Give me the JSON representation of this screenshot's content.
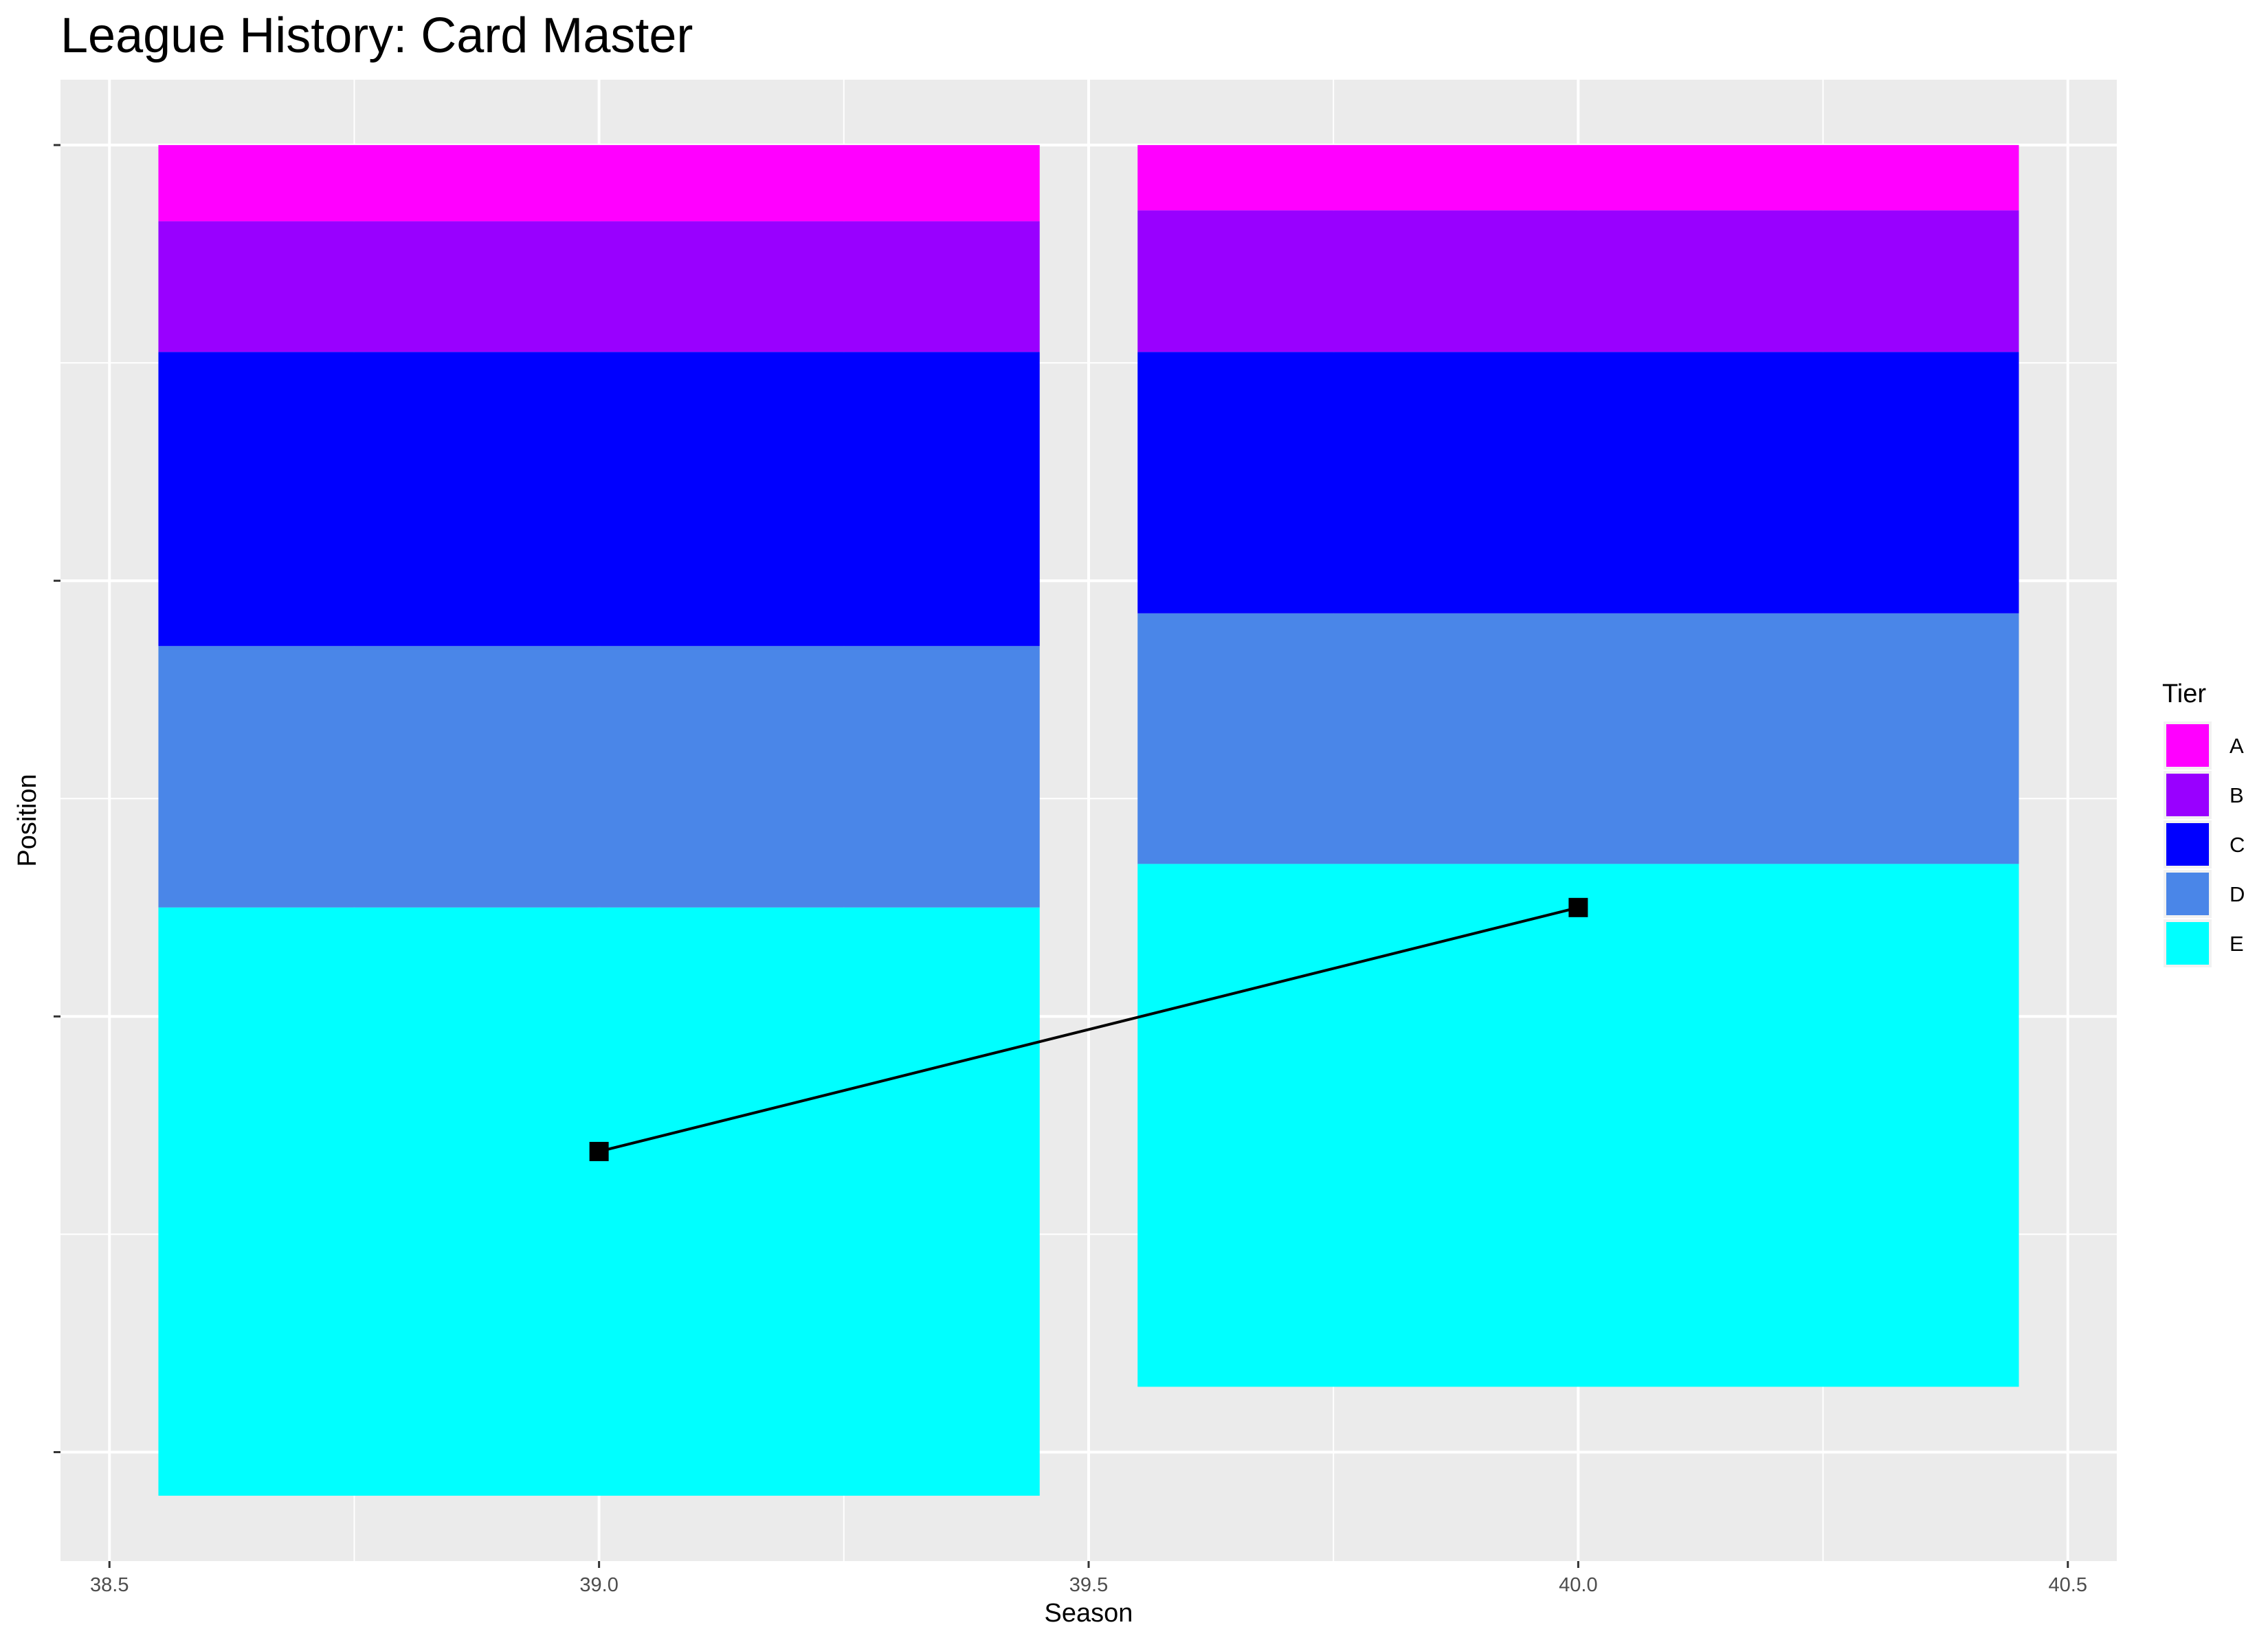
{
  "chart_data": {
    "type": "bar",
    "title": "League History: Card Master",
    "xlabel": "Season",
    "ylabel": "Position",
    "xlim": [
      38.45,
      40.55
    ],
    "ylim": [
      -54.5,
      -20.5
    ],
    "x_ticks": [
      38.5,
      39.0,
      39.5,
      40.0,
      40.5
    ],
    "x_tick_labels": [
      "38.5",
      "39.0",
      "39.5",
      "40.0",
      "40.5"
    ],
    "y_major_ticks": [
      -52,
      -42,
      -32,
      -22
    ],
    "y_minor_ticks": [
      -47,
      -37,
      -27
    ],
    "grid": true,
    "legend": {
      "title": "Tier",
      "placement": "right",
      "entries": [
        {
          "label": "A",
          "color": "#FF00FF"
        },
        {
          "label": "B",
          "color": "#9900FF"
        },
        {
          "label": "C",
          "color": "#0000FF"
        },
        {
          "label": "D",
          "color": "#4A86E8"
        },
        {
          "label": "E",
          "color": "#00FFFF"
        }
      ]
    },
    "bar_width": 0.9,
    "bars": [
      {
        "season": 39,
        "segments": [
          {
            "tier": "A",
            "top": -22,
            "bottom": -23.75
          },
          {
            "tier": "B",
            "top": -23.75,
            "bottom": -26.75
          },
          {
            "tier": "C",
            "top": -26.75,
            "bottom": -33.5
          },
          {
            "tier": "D",
            "top": -33.5,
            "bottom": -39.5
          },
          {
            "tier": "E",
            "top": -39.5,
            "bottom": -53
          }
        ]
      },
      {
        "season": 40,
        "segments": [
          {
            "tier": "A",
            "top": -22,
            "bottom": -23.5
          },
          {
            "tier": "B",
            "top": -23.5,
            "bottom": -26.75
          },
          {
            "tier": "C",
            "top": -26.75,
            "bottom": -32.75
          },
          {
            "tier": "D",
            "top": -32.75,
            "bottom": -38.5
          },
          {
            "tier": "E",
            "top": -38.5,
            "bottom": -50.5
          }
        ]
      }
    ],
    "position_series": {
      "x": [
        39,
        40
      ],
      "y": [
        -45.1,
        -39.5
      ],
      "color": "#000000",
      "marker": "square"
    }
  }
}
